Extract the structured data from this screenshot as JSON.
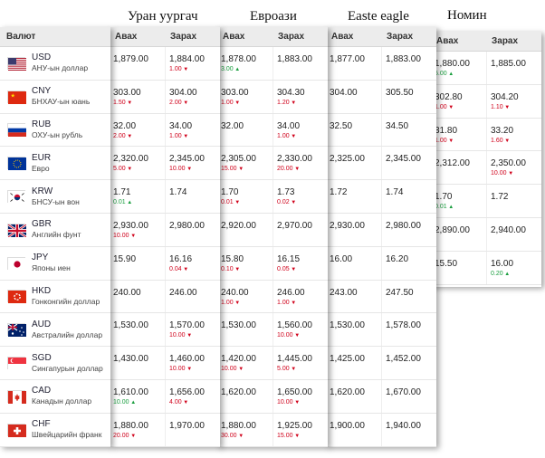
{
  "banks": [
    {
      "title": "Уран уургач"
    },
    {
      "title": "Евроази"
    },
    {
      "title": "Easte eagle"
    },
    {
      "title": "Номин"
    }
  ],
  "headers": {
    "currency": "Валют",
    "buy": "Авах",
    "sell": "Зарах"
  },
  "currencies": [
    {
      "code": "USD",
      "name": "АНУ-ын доллар",
      "flag": "us-flag-icon"
    },
    {
      "code": "CNY",
      "name": "БНХАУ-ын юань",
      "flag": "cn-flag-icon"
    },
    {
      "code": "RUB",
      "name": "ОХУ-ын рубль",
      "flag": "ru-flag-icon"
    },
    {
      "code": "EUR",
      "name": "Евро",
      "flag": "eu-flag-icon"
    },
    {
      "code": "KRW",
      "name": "БНСУ-ын вон",
      "flag": "kr-flag-icon"
    },
    {
      "code": "GBR",
      "name": "Английн фунт",
      "flag": "gb-flag-icon"
    },
    {
      "code": "JPY",
      "name": "Японы иен",
      "flag": "jp-flag-icon"
    },
    {
      "code": "HKD",
      "name": "Гонконгийн доллар",
      "flag": "hk-flag-icon"
    },
    {
      "code": "AUD",
      "name": "Австралийн доллар",
      "flag": "au-flag-icon"
    },
    {
      "code": "SGD",
      "name": "Сингапурын доллар",
      "flag": "sg-flag-icon"
    },
    {
      "code": "CAD",
      "name": "Канадын доллар",
      "flag": "ca-flag-icon"
    },
    {
      "code": "CHF",
      "name": "Швейцарийн франк",
      "flag": "ch-flag-icon"
    }
  ],
  "rates": [
    [
      {
        "buy": "1,879.00",
        "sell": "1,884.00",
        "sell_chg": "1.00",
        "sell_dir": "down"
      },
      {
        "buy": "303.00",
        "buy_chg": "1.50",
        "buy_dir": "down",
        "sell": "304.00",
        "sell_chg": "2.00",
        "sell_dir": "down"
      },
      {
        "buy": "32.00",
        "buy_chg": "2.00",
        "buy_dir": "down",
        "sell": "34.00",
        "sell_chg": "1.00",
        "sell_dir": "down"
      },
      {
        "buy": "2,320.00",
        "buy_chg": "5.00",
        "buy_dir": "down",
        "sell": "2,345.00",
        "sell_chg": "10.00",
        "sell_dir": "down"
      },
      {
        "buy": "1.71",
        "buy_chg": "0.01",
        "buy_dir": "up",
        "sell": "1.74"
      },
      {
        "buy": "2,930.00",
        "buy_chg": "10.00",
        "buy_dir": "down",
        "sell": "2,980.00"
      },
      {
        "buy": "15.90",
        "sell": "16.16",
        "sell_chg": "0.04",
        "sell_dir": "down"
      },
      {
        "buy": "240.00",
        "sell": "246.00"
      },
      {
        "buy": "1,530.00",
        "sell": "1,570.00",
        "sell_chg": "10.00",
        "sell_dir": "down"
      },
      {
        "buy": "1,430.00",
        "sell": "1,460.00",
        "sell_chg": "10.00",
        "sell_dir": "down"
      },
      {
        "buy": "1,610.00",
        "buy_chg": "10.00",
        "buy_dir": "up",
        "sell": "1,656.00",
        "sell_chg": "4.00",
        "sell_dir": "down"
      },
      {
        "buy": "1,880.00",
        "buy_chg": "20.00",
        "buy_dir": "down",
        "sell": "1,970.00"
      }
    ],
    [
      {
        "buy": "1,878.00",
        "buy_chg": "3.00",
        "buy_dir": "up",
        "sell": "1,883.00"
      },
      {
        "buy": "303.00",
        "buy_chg": "1.00",
        "buy_dir": "down",
        "sell": "304.30",
        "sell_chg": "1.20",
        "sell_dir": "down"
      },
      {
        "buy": "32.00",
        "sell": "34.00",
        "sell_chg": "1.00",
        "sell_dir": "down"
      },
      {
        "buy": "2,305.00",
        "buy_chg": "15.00",
        "buy_dir": "down",
        "sell": "2,330.00",
        "sell_chg": "20.00",
        "sell_dir": "down"
      },
      {
        "buy": "1.70",
        "buy_chg": "0.01",
        "buy_dir": "down",
        "sell": "1.73",
        "sell_chg": "0.02",
        "sell_dir": "down"
      },
      {
        "buy": "2,920.00",
        "sell": "2,970.00"
      },
      {
        "buy": "15.80",
        "buy_chg": "0.10",
        "buy_dir": "down",
        "sell": "16.15",
        "sell_chg": "0.05",
        "sell_dir": "down"
      },
      {
        "buy": "240.00",
        "buy_chg": "1.00",
        "buy_dir": "down",
        "sell": "246.00",
        "sell_chg": "1.00",
        "sell_dir": "down"
      },
      {
        "buy": "1,530.00",
        "sell": "1,560.00",
        "sell_chg": "10.00",
        "sell_dir": "down"
      },
      {
        "buy": "1,420.00",
        "buy_chg": "10.00",
        "buy_dir": "down",
        "sell": "1,445.00",
        "sell_chg": "5.00",
        "sell_dir": "down"
      },
      {
        "buy": "1,620.00",
        "sell": "1,650.00",
        "sell_chg": "10.00",
        "sell_dir": "down"
      },
      {
        "buy": "1,880.00",
        "buy_chg": "30.00",
        "buy_dir": "down",
        "sell": "1,925.00",
        "sell_chg": "15.00",
        "sell_dir": "down"
      }
    ],
    [
      {
        "buy": "1,877.00",
        "sell": "1,883.00"
      },
      {
        "buy": "304.00",
        "sell": "305.50"
      },
      {
        "buy": "32.50",
        "sell": "34.50"
      },
      {
        "buy": "2,325.00",
        "sell": "2,345.00"
      },
      {
        "buy": "1.72",
        "sell": "1.74"
      },
      {
        "buy": "2,930.00",
        "sell": "2,980.00"
      },
      {
        "buy": "16.00",
        "sell": "16.20"
      },
      {
        "buy": "243.00",
        "sell": "247.50"
      },
      {
        "buy": "1,530.00",
        "sell": "1,578.00"
      },
      {
        "buy": "1,425.00",
        "sell": "1,452.00"
      },
      {
        "buy": "1,620.00",
        "sell": "1,670.00"
      },
      {
        "buy": "1,900.00",
        "sell": "1,940.00"
      }
    ],
    [
      {
        "buy": "1,880.00",
        "buy_chg": "5.00",
        "buy_dir": "up",
        "sell": "1,885.00"
      },
      {
        "buy": "302.80",
        "buy_chg": "1.00",
        "buy_dir": "down",
        "sell": "304.20",
        "sell_chg": "1.10",
        "sell_dir": "down"
      },
      {
        "buy": "31.80",
        "buy_chg": "1.00",
        "buy_dir": "down",
        "sell": "33.20",
        "sell_chg": "1.60",
        "sell_dir": "down"
      },
      {
        "buy": "2,312.00",
        "sell": "2,350.00",
        "sell_chg": "10.00",
        "sell_dir": "down"
      },
      {
        "buy": "1.70",
        "buy_chg": "0.01",
        "buy_dir": "up",
        "sell": "1.72"
      },
      {
        "buy": "2,890.00",
        "sell": "2,940.00"
      },
      {
        "buy": "15.50",
        "sell": "16.00",
        "sell_chg": "0.20",
        "sell_dir": "up"
      }
    ]
  ]
}
